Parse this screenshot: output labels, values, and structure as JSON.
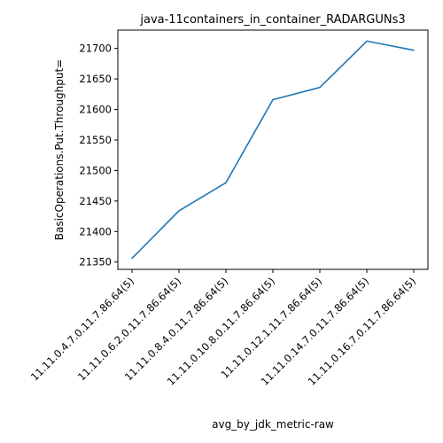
{
  "chart_data": {
    "type": "line",
    "title": "java-11containers_in_container_RADARGUNs3",
    "xlabel": "avg_by_jdk_metric-raw",
    "ylabel": "BasicOperations.Put.Throughput=",
    "categories": [
      "11.11.0.4.7.0.11.7.86.64(5)",
      "11.11.0.6.2.0.11.7.86.64(5)",
      "11.11.0.8.4.0.11.7.86.64(5)",
      "11.11.0.10.8.0.11.7.86.64(5)",
      "11.11.0.12.1.11.7.86.64(5)",
      "11.11.0.14.7.0.11.7.86.64(5)",
      "11.11.0.16.7.0.11.7.86.64(5)"
    ],
    "series": [
      {
        "values": [
          21356,
          21434,
          21480,
          21616,
          21636,
          21712,
          21697
        ],
        "color": "#1f77b4"
      }
    ],
    "yticks": [
      21350,
      21400,
      21450,
      21500,
      21550,
      21600,
      21650,
      21700
    ],
    "ylim": [
      21338,
      21730
    ],
    "grid": false
  }
}
